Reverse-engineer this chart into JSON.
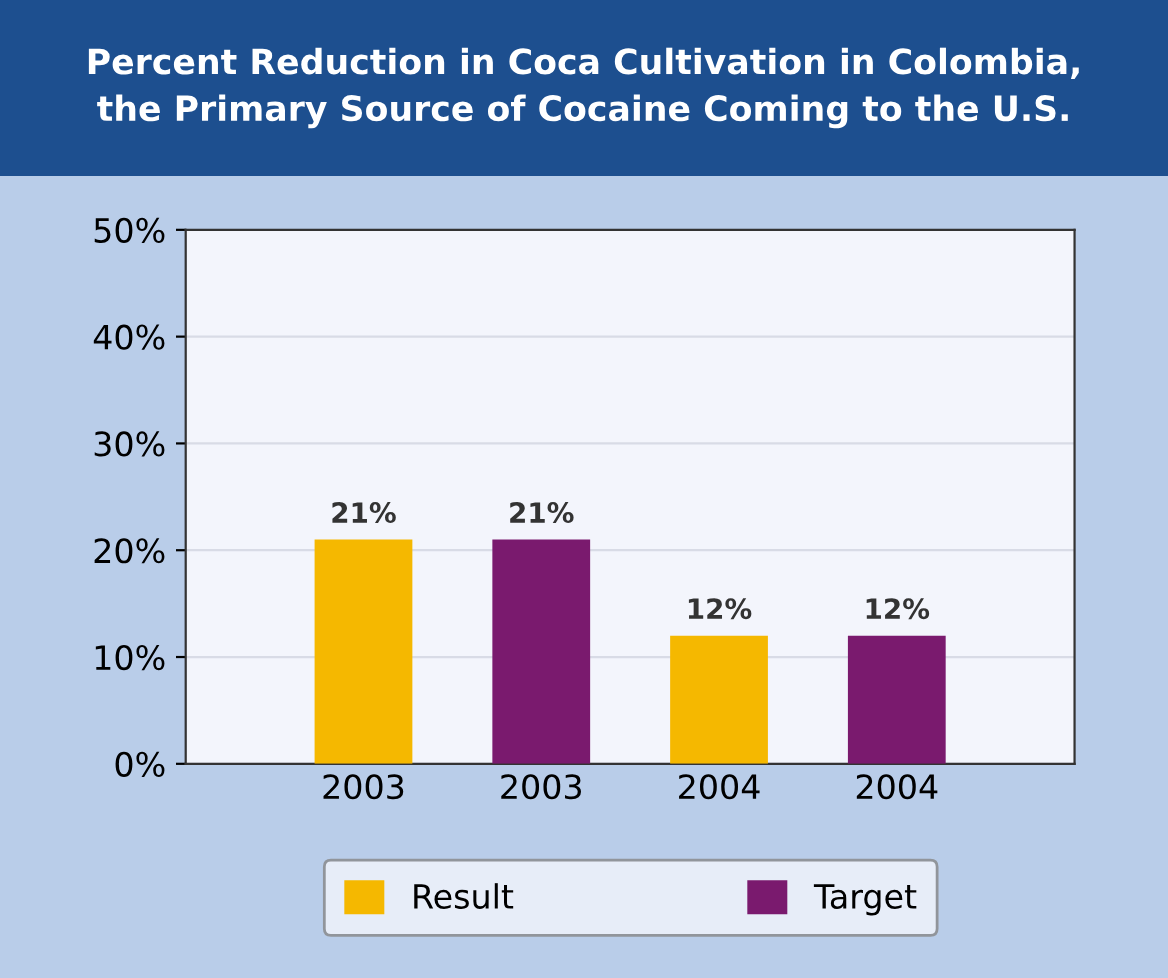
{
  "chart_data": {
    "type": "bar",
    "title": "Percent Reduction in Coca Cultivation in Colombia,\nthe Primary Source of Cocaine Coming to the U.S.",
    "categories": [
      "2003",
      "2003",
      "2004",
      "2004"
    ],
    "series": [
      {
        "name": "Result",
        "color": "#f5b800",
        "values": [
          21,
          null,
          12,
          null
        ],
        "value_labels": [
          "21%",
          null,
          "12%",
          null
        ]
      },
      {
        "name": "Target",
        "color": "#7a1a6e",
        "values": [
          null,
          21,
          null,
          12
        ],
        "value_labels": [
          null,
          "21%",
          null,
          "12%"
        ]
      }
    ],
    "ylim": [
      0,
      50
    ],
    "yticks": [
      {
        "value": 0,
        "label": "0%"
      },
      {
        "value": 10,
        "label": "10%"
      },
      {
        "value": 20,
        "label": "20%"
      },
      {
        "value": 30,
        "label": "30%"
      },
      {
        "value": 40,
        "label": "40%"
      },
      {
        "value": 50,
        "label": "50%"
      }
    ],
    "grid": "y",
    "legend": "bottom"
  }
}
